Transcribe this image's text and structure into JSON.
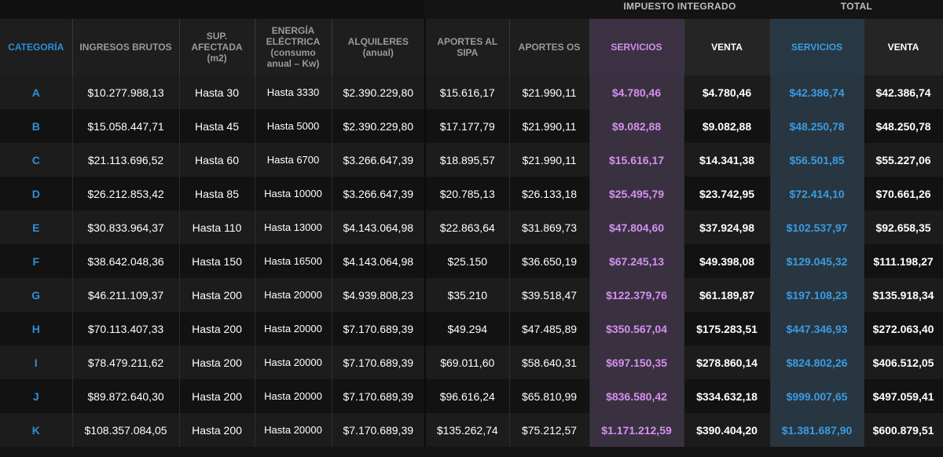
{
  "groups": {
    "impuesto": "IMPUESTO INTEGRADO",
    "total": "TOTAL"
  },
  "headers": {
    "categoria": "CATEGORÍA",
    "ingresos": "INGRESOS BRUTOS",
    "sup": "SUP. AFECTADA (m2)",
    "energia": "ENERGÍA ELÉCTRICA (consumo anual – Kw)",
    "alquileres": "ALQUILERES (anual)",
    "sipa": "APORTES AL SIPA",
    "os": "APORTES OS",
    "imp_servicios": "SERVICIOS",
    "imp_venta": "VENTA",
    "tot_servicios": "SERVICIOS",
    "tot_venta": "VENTA"
  },
  "rows": [
    {
      "cat": "A",
      "ingresos": "$10.277.988,13",
      "sup": "Hasta 30",
      "energia": "Hasta 3330",
      "alquileres": "$2.390.229,80",
      "sipa": "$15.616,17",
      "os": "$21.990,11",
      "imp_serv": "$4.780,46",
      "imp_venta": "$4.780,46",
      "tot_serv": "$42.386,74",
      "tot_venta": "$42.386,74"
    },
    {
      "cat": "B",
      "ingresos": "$15.058.447,71",
      "sup": "Hasta 45",
      "energia": "Hasta 5000",
      "alquileres": "$2.390.229,80",
      "sipa": "$17.177,79",
      "os": "$21.990,11",
      "imp_serv": "$9.082,88",
      "imp_venta": "$9.082,88",
      "tot_serv": "$48.250,78",
      "tot_venta": "$48.250,78"
    },
    {
      "cat": "C",
      "ingresos": "$21.113.696,52",
      "sup": "Hasta 60",
      "energia": "Hasta 6700",
      "alquileres": "$3.266.647,39",
      "sipa": "$18.895,57",
      "os": "$21.990,11",
      "imp_serv": "$15.616,17",
      "imp_venta": "$14.341,38",
      "tot_serv": "$56.501,85",
      "tot_venta": "$55.227,06"
    },
    {
      "cat": "D",
      "ingresos": "$26.212.853,42",
      "sup": "Hasta 85",
      "energia": "Hasta 10000",
      "alquileres": "$3.266.647,39",
      "sipa": "$20.785,13",
      "os": "$26.133,18",
      "imp_serv": "$25.495,79",
      "imp_venta": "$23.742,95",
      "tot_serv": "$72.414,10",
      "tot_venta": "$70.661,26"
    },
    {
      "cat": "E",
      "ingresos": "$30.833.964,37",
      "sup": "Hasta 110",
      "energia": "Hasta 13000",
      "alquileres": "$4.143.064,98",
      "sipa": "$22.863,64",
      "os": "$31.869,73",
      "imp_serv": "$47.804,60",
      "imp_venta": "$37.924,98",
      "tot_serv": "$102.537,97",
      "tot_venta": "$92.658,35"
    },
    {
      "cat": "F",
      "ingresos": "$38.642.048,36",
      "sup": "Hasta 150",
      "energia": "Hasta 16500",
      "alquileres": "$4.143.064,98",
      "sipa": "$25.150",
      "os": "$36.650,19",
      "imp_serv": "$67.245,13",
      "imp_venta": "$49.398,08",
      "tot_serv": "$129.045,32",
      "tot_venta": "$111.198,27"
    },
    {
      "cat": "G",
      "ingresos": "$46.211.109,37",
      "sup": "Hasta 200",
      "energia": "Hasta 20000",
      "alquileres": "$4.939.808,23",
      "sipa": "$35.210",
      "os": "$39.518,47",
      "imp_serv": "$122.379,76",
      "imp_venta": "$61.189,87",
      "tot_serv": "$197.108,23",
      "tot_venta": "$135.918,34"
    },
    {
      "cat": "H",
      "ingresos": "$70.113.407,33",
      "sup": "Hasta 200",
      "energia": "Hasta 20000",
      "alquileres": "$7.170.689,39",
      "sipa": "$49.294",
      "os": "$47.485,89",
      "imp_serv": "$350.567,04",
      "imp_venta": "$175.283,51",
      "tot_serv": "$447.346,93",
      "tot_venta": "$272.063,40"
    },
    {
      "cat": "I",
      "ingresos": "$78.479.211,62",
      "sup": "Hasta 200",
      "energia": "Hasta 20000",
      "alquileres": "$7.170.689,39",
      "sipa": "$69.011,60",
      "os": "$58.640,31",
      "imp_serv": "$697.150,35",
      "imp_venta": "$278.860,14",
      "tot_serv": "$824.802,26",
      "tot_venta": "$406.512,05"
    },
    {
      "cat": "J",
      "ingresos": "$89.872.640,30",
      "sup": "Hasta 200",
      "energia": "Hasta 20000",
      "alquileres": "$7.170.689,39",
      "sipa": "$96.616,24",
      "os": "$65.810,99",
      "imp_serv": "$836.580,42",
      "imp_venta": "$334.632,18",
      "tot_serv": "$999.007,65",
      "tot_venta": "$497.059,41"
    },
    {
      "cat": "K",
      "ingresos": "$108.357.084,05",
      "sup": "Hasta 200",
      "energia": "Hasta 20000",
      "alquileres": "$7.170.689,39",
      "sipa": "$135.262,74",
      "os": "$75.212,57",
      "imp_serv": "$1.171.212,59",
      "imp_venta": "$390.404,20",
      "tot_serv": "$1.381.687,90",
      "tot_venta": "$600.879,51"
    }
  ]
}
